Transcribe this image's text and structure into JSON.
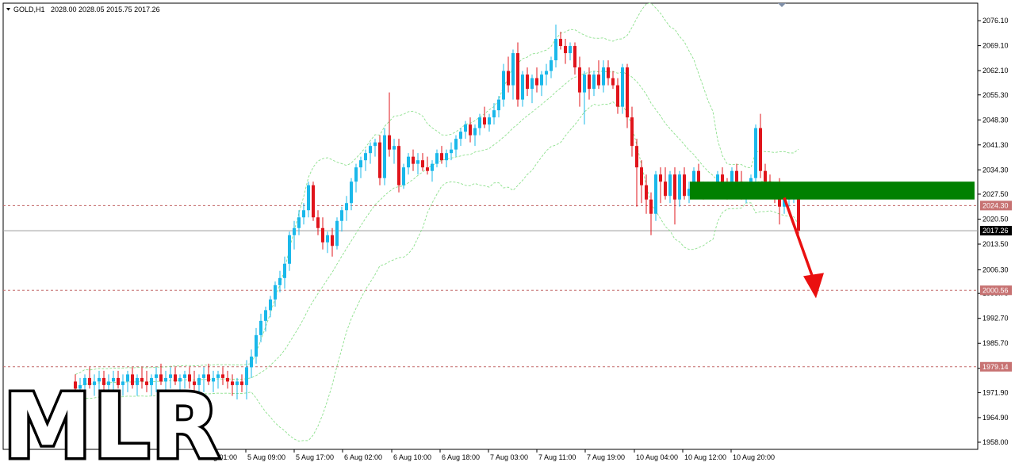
{
  "header": {
    "symbol": "GOLD,H1",
    "ohlc": "2028.00 2028.05 2015.75 2017.26"
  },
  "watermark": "MLR",
  "colors": {
    "bull": "#1ab8ea",
    "bear": "#e0141b",
    "band": "#8de08d",
    "zone": "#008000",
    "arrow": "#ea1010",
    "dashed_level": "#c46a6a",
    "price_line": "#9a9a9a"
  },
  "chart_data": {
    "type": "candlestick",
    "symbol": "GOLD",
    "timeframe": "H1",
    "ylim": [
      1956.0,
      2081.0
    ],
    "y_ticks": [
      "2076.10",
      "2069.10",
      "2062.10",
      "2055.30",
      "2048.30",
      "2041.30",
      "2034.30",
      "2027.50",
      "2020.50",
      "2013.50",
      "2006.30",
      "1999.70",
      "1992.70",
      "1985.70",
      "1978.70",
      "1971.90",
      "1964.90",
      "1958.00"
    ],
    "x_ticks": [
      "Aug 01:00",
      "5 Aug 09:00",
      "5 Aug 17:00",
      "6 Aug 02:00",
      "6 Aug 10:00",
      "6 Aug 18:00",
      "7 Aug 03:00",
      "7 Aug 11:00",
      "7 Aug 19:00",
      "10 Aug 04:00",
      "10 Aug 12:00",
      "10 Aug 20:00"
    ],
    "levels": [
      {
        "label": "2024.30",
        "value": 2024.3,
        "style": "dashed"
      },
      {
        "label": "2000.56",
        "value": 2000.56,
        "style": "dashed"
      },
      {
        "label": "1979.14",
        "value": 1979.14,
        "style": "dashed"
      }
    ],
    "current_price": {
      "label": "2017.26",
      "value": 2017.26
    },
    "zone": {
      "low": 2026.0,
      "high": 2031.0
    },
    "arrow": {
      "from": 2026.5,
      "to": 2001.0
    },
    "candles": [
      [
        1975,
        1977,
        1971,
        1973
      ],
      [
        1973,
        1976,
        1969,
        1974
      ],
      [
        1974,
        1977,
        1970,
        1976
      ],
      [
        1976,
        1979,
        1973,
        1974
      ],
      [
        1974,
        1977,
        1971,
        1975
      ],
      [
        1975,
        1978,
        1972,
        1976
      ],
      [
        1976,
        1978,
        1972,
        1974
      ],
      [
        1974,
        1977,
        1971,
        1975
      ],
      [
        1975,
        1978,
        1972,
        1976
      ],
      [
        1976,
        1978,
        1973,
        1974
      ],
      [
        1974,
        1977,
        1971,
        1975
      ],
      [
        1975,
        1978,
        1972,
        1977
      ],
      [
        1977,
        1979,
        1973,
        1974
      ],
      [
        1974,
        1977,
        1971,
        1976
      ],
      [
        1976,
        1979,
        1973,
        1975
      ],
      [
        1975,
        1978,
        1972,
        1974
      ],
      [
        1974,
        1977,
        1971,
        1976
      ],
      [
        1976,
        1979,
        1972,
        1977
      ],
      [
        1977,
        1980,
        1974,
        1975
      ],
      [
        1975,
        1978,
        1972,
        1976
      ],
      [
        1976,
        1979,
        1973,
        1977
      ],
      [
        1977,
        1979,
        1974,
        1975
      ],
      [
        1975,
        1977,
        1972,
        1976
      ],
      [
        1976,
        1978,
        1973,
        1977
      ],
      [
        1977,
        1979,
        1973,
        1975
      ],
      [
        1975,
        1978,
        1972,
        1974
      ],
      [
        1974,
        1977,
        1971,
        1976
      ],
      [
        1976,
        1979,
        1972,
        1977
      ],
      [
        1977,
        1980,
        1974,
        1975
      ],
      [
        1975,
        1978,
        1972,
        1976
      ],
      [
        1976,
        1978,
        1973,
        1977
      ],
      [
        1977,
        1979,
        1974,
        1976
      ],
      [
        1976,
        1978,
        1973,
        1975
      ],
      [
        1975,
        1977,
        1971,
        1974
      ],
      [
        1974,
        1976,
        1970,
        1975
      ],
      [
        1975,
        1977,
        1972,
        1974
      ],
      [
        1974,
        1981,
        1970,
        1979
      ],
      [
        1979,
        1984,
        1976,
        1982
      ],
      [
        1982,
        1990,
        1980,
        1988
      ],
      [
        1988,
        1994,
        1986,
        1992
      ],
      [
        1992,
        1996,
        1989,
        1995
      ],
      [
        1995,
        1999,
        1993,
        1998
      ],
      [
        1998,
        2003,
        1996,
        2002
      ],
      [
        2002,
        2006,
        2000,
        2004
      ],
      [
        2004,
        2010,
        2001,
        2008
      ],
      [
        2008,
        2017,
        2006,
        2016
      ],
      [
        2016,
        2020,
        2012,
        2018
      ],
      [
        2018,
        2023,
        2016,
        2021
      ],
      [
        2021,
        2025,
        2019,
        2023
      ],
      [
        2023,
        2031,
        2021,
        2030
      ],
      [
        2030,
        2031,
        2020,
        2021
      ],
      [
        2021,
        2023,
        2016,
        2018
      ],
      [
        2018,
        2021,
        2012,
        2014
      ],
      [
        2014,
        2017,
        2011,
        2016
      ],
      [
        2016,
        2018,
        2010,
        2013
      ],
      [
        2013,
        2021,
        2012,
        2020
      ],
      [
        2020,
        2024,
        2017,
        2023
      ],
      [
        2023,
        2027,
        2020,
        2025
      ],
      [
        2025,
        2032,
        2023,
        2031
      ],
      [
        2031,
        2036,
        2028,
        2035
      ],
      [
        2035,
        2038,
        2032,
        2037
      ],
      [
        2037,
        2040,
        2034,
        2039
      ],
      [
        2039,
        2042,
        2036,
        2041
      ],
      [
        2041,
        2043,
        2038,
        2042
      ],
      [
        2042,
        2044,
        2030,
        2032
      ],
      [
        2032,
        2046,
        2030,
        2044
      ],
      [
        2044,
        2056,
        2038,
        2040
      ],
      [
        2040,
        2043,
        2036,
        2041
      ],
      [
        2041,
        2043,
        2028,
        2030
      ],
      [
        2030,
        2036,
        2029,
        2035
      ],
      [
        2035,
        2039,
        2033,
        2038
      ],
      [
        2038,
        2040,
        2034,
        2036
      ],
      [
        2036,
        2039,
        2033,
        2037
      ],
      [
        2037,
        2039,
        2034,
        2035
      ],
      [
        2035,
        2038,
        2033,
        2034
      ],
      [
        2034,
        2037,
        2031,
        2036
      ],
      [
        2036,
        2040,
        2035,
        2039
      ],
      [
        2039,
        2041,
        2036,
        2037
      ],
      [
        2037,
        2040,
        2035,
        2039
      ],
      [
        2039,
        2042,
        2037,
        2040
      ],
      [
        2040,
        2044,
        2038,
        2043
      ],
      [
        2043,
        2046,
        2041,
        2045
      ],
      [
        2045,
        2048,
        2043,
        2047
      ],
      [
        2047,
        2049,
        2042,
        2044
      ],
      [
        2044,
        2047,
        2041,
        2046
      ],
      [
        2046,
        2050,
        2044,
        2049
      ],
      [
        2049,
        2052,
        2046,
        2047
      ],
      [
        2047,
        2050,
        2045,
        2049
      ],
      [
        2049,
        2053,
        2047,
        2051
      ],
      [
        2051,
        2055,
        2049,
        2054
      ],
      [
        2054,
        2064,
        2052,
        2062
      ],
      [
        2062,
        2066,
        2056,
        2058
      ],
      [
        2058,
        2068,
        2054,
        2067
      ],
      [
        2067,
        2070,
        2052,
        2054
      ],
      [
        2054,
        2062,
        2052,
        2061
      ],
      [
        2061,
        2063,
        2055,
        2057
      ],
      [
        2057,
        2061,
        2053,
        2060
      ],
      [
        2060,
        2063,
        2056,
        2058
      ],
      [
        2058,
        2062,
        2055,
        2061
      ],
      [
        2061,
        2064,
        2058,
        2062
      ],
      [
        2062,
        2066,
        2060,
        2065
      ],
      [
        2065,
        2075,
        2063,
        2071
      ],
      [
        2071,
        2073,
        2068,
        2069
      ],
      [
        2069,
        2071,
        2064,
        2067
      ],
      [
        2067,
        2070,
        2065,
        2069
      ],
      [
        2069,
        2070,
        2061,
        2063
      ],
      [
        2063,
        2066,
        2052,
        2056
      ],
      [
        2056,
        2062,
        2047,
        2061
      ],
      [
        2061,
        2063,
        2054,
        2057
      ],
      [
        2057,
        2062,
        2055,
        2061
      ],
      [
        2061,
        2065,
        2057,
        2058
      ],
      [
        2058,
        2065,
        2056,
        2063
      ],
      [
        2063,
        2065,
        2058,
        2060
      ],
      [
        2060,
        2062,
        2057,
        2058
      ],
      [
        2058,
        2060,
        2050,
        2052
      ],
      [
        2052,
        2064,
        2050,
        2063
      ],
      [
        2063,
        2064,
        2046,
        2049
      ],
      [
        2049,
        2052,
        2038,
        2041
      ],
      [
        2041,
        2043,
        2024,
        2035
      ],
      [
        2035,
        2037,
        2025,
        2030
      ],
      [
        2030,
        2033,
        2022,
        2026
      ],
      [
        2026,
        2028,
        2016,
        2022
      ],
      [
        2022,
        2034,
        2020,
        2033
      ],
      [
        2033,
        2035,
        2025,
        2031
      ],
      [
        2031,
        2035,
        2026,
        2027
      ],
      [
        2027,
        2034,
        2025,
        2033
      ],
      [
        2033,
        2035,
        2019,
        2026
      ],
      [
        2026,
        2034,
        2024,
        2033
      ],
      [
        2033,
        2035,
        2026,
        2027
      ],
      [
        2027,
        2031,
        2025,
        2029
      ],
      [
        2029,
        2035,
        2027,
        2034
      ],
      [
        2034,
        2036,
        2027,
        2029
      ],
      [
        2029,
        2031,
        2026,
        2028
      ],
      [
        2028,
        2031,
        2027,
        2029
      ],
      [
        2029,
        2031,
        2027,
        2030
      ],
      [
        2030,
        2034,
        2028,
        2033
      ],
      [
        2033,
        2035,
        2029,
        2030
      ],
      [
        2030,
        2032,
        2026,
        2028
      ],
      [
        2028,
        2035,
        2027,
        2034
      ],
      [
        2034,
        2036,
        2030,
        2031
      ],
      [
        2031,
        2034,
        2026,
        2027
      ],
      [
        2027,
        2030,
        2025,
        2029
      ],
      [
        2029,
        2033,
        2027,
        2032
      ],
      [
        2032,
        2047,
        2030,
        2046
      ],
      [
        2046,
        2050,
        2032,
        2034
      ],
      [
        2034,
        2036,
        2030,
        2031
      ],
      [
        2031,
        2033,
        2027,
        2028
      ],
      [
        2028,
        2030,
        2025,
        2027
      ],
      [
        2027,
        2032,
        2019,
        2024
      ],
      [
        2024,
        2027,
        2022,
        2026
      ],
      [
        2026,
        2028,
        2024,
        2027
      ],
      [
        2027,
        2029,
        2025,
        2028
      ],
      [
        2028,
        2028,
        2015.75,
        2017.26
      ]
    ]
  }
}
